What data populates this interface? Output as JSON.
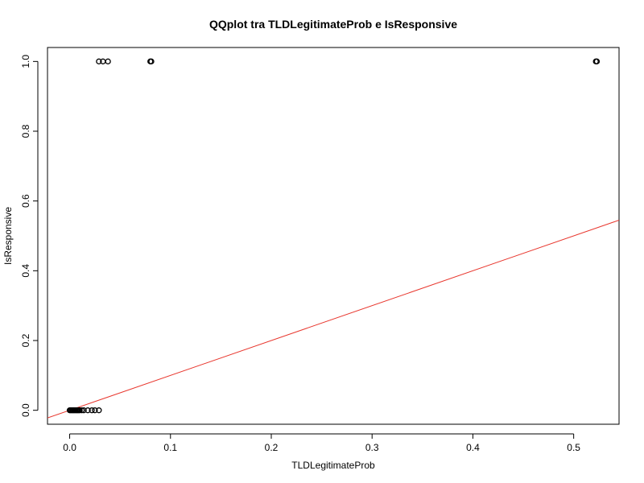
{
  "chart_data": {
    "type": "scatter",
    "title": "QQplot tra TLDLegitimateProb e IsResponsive",
    "xlabel": "TLDLegitimateProb",
    "ylabel": "IsResponsive",
    "xlim": [
      -0.022,
      0.545
    ],
    "ylim": [
      -0.04,
      1.04
    ],
    "x_ticks": [
      0.0,
      0.1,
      0.2,
      0.3,
      0.4,
      0.5
    ],
    "x_tick_labels": [
      "0.0",
      "0.1",
      "0.2",
      "0.3",
      "0.4",
      "0.5"
    ],
    "y_ticks": [
      0.0,
      0.2,
      0.4,
      0.6,
      0.8,
      1.0
    ],
    "y_tick_labels": [
      "0.0",
      "0.2",
      "0.4",
      "0.6",
      "0.8",
      "1.0"
    ],
    "grid": false,
    "series": [
      {
        "marker": "open-circle",
        "color": "#000000",
        "points": [
          {
            "x": 0.0,
            "y": 0.0
          },
          {
            "x": 0.001,
            "y": 0.0
          },
          {
            "x": 0.002,
            "y": 0.0
          },
          {
            "x": 0.003,
            "y": 0.0
          },
          {
            "x": 0.004,
            "y": 0.0
          },
          {
            "x": 0.005,
            "y": 0.0
          },
          {
            "x": 0.006,
            "y": 0.0
          },
          {
            "x": 0.007,
            "y": 0.0
          },
          {
            "x": 0.008,
            "y": 0.0
          },
          {
            "x": 0.009,
            "y": 0.0
          },
          {
            "x": 0.01,
            "y": 0.0
          },
          {
            "x": 0.012,
            "y": 0.0
          },
          {
            "x": 0.014,
            "y": 0.0
          },
          {
            "x": 0.018,
            "y": 0.0
          },
          {
            "x": 0.022,
            "y": 0.0
          },
          {
            "x": 0.025,
            "y": 0.0
          },
          {
            "x": 0.029,
            "y": 0.0
          },
          {
            "x": 0.029,
            "y": 1.0
          },
          {
            "x": 0.033,
            "y": 1.0
          },
          {
            "x": 0.038,
            "y": 1.0
          },
          {
            "x": 0.08,
            "y": 1.0
          },
          {
            "x": 0.081,
            "y": 1.0
          },
          {
            "x": 0.522,
            "y": 1.0
          },
          {
            "x": 0.523,
            "y": 1.0
          }
        ]
      }
    ],
    "reference_line": {
      "color": "#e8362d",
      "intercept": 0.0,
      "slope": 1.0
    }
  }
}
